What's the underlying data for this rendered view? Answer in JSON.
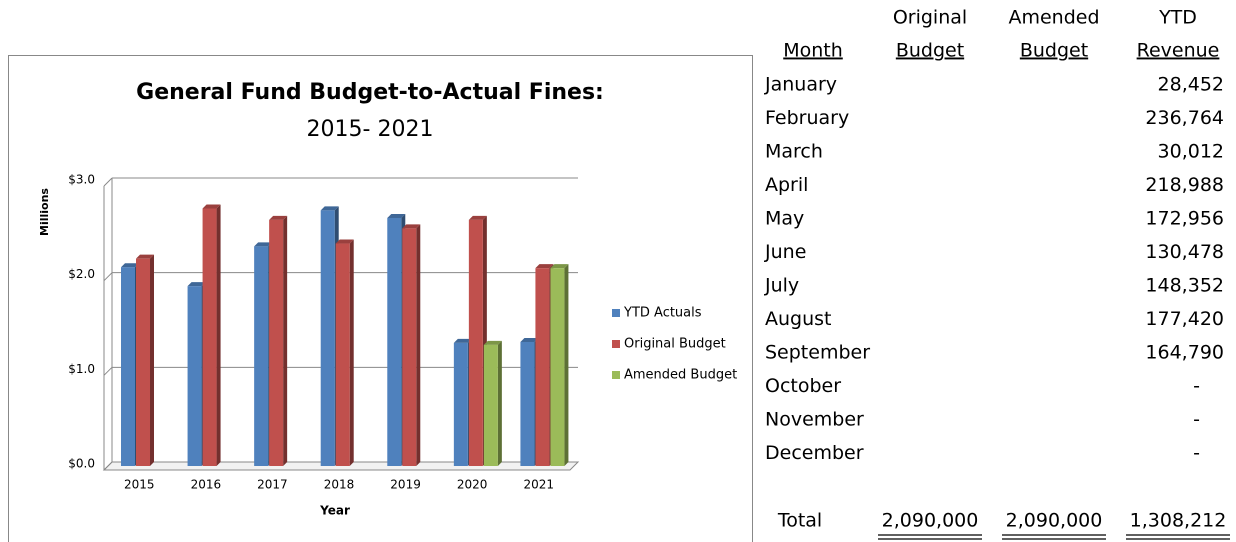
{
  "chart_data": {
    "type": "bar",
    "title": "General Fund Budget-to-Actual Fines:",
    "subtitle": "2015- 2021",
    "x_label": "Year",
    "y_label": "Millions",
    "categories": [
      "2015",
      "2016",
      "2017",
      "2018",
      "2019",
      "2020",
      "2021"
    ],
    "series": [
      {
        "name": "YTD Actuals",
        "color": "#4f81bd",
        "values": [
          2.1,
          1.9,
          2.32,
          2.7,
          2.62,
          1.3,
          1.31
        ]
      },
      {
        "name": "Original Budget",
        "color": "#c0504d",
        "values": [
          2.19,
          2.72,
          2.6,
          2.35,
          2.51,
          2.6,
          2.09
        ]
      },
      {
        "name": "Amended Budget",
        "color": "#9bbb59",
        "values": [
          null,
          null,
          null,
          null,
          null,
          1.28,
          2.09
        ]
      }
    ],
    "ylim": [
      0,
      3
    ],
    "yticks": [
      {
        "value": 0,
        "label": "$0.0"
      },
      {
        "value": 1,
        "label": "$1.0"
      },
      {
        "value": 2,
        "label": "$2.0"
      },
      {
        "value": 3,
        "label": "$3.0"
      }
    ],
    "grid": true,
    "legend": "right"
  },
  "table": {
    "columns": [
      {
        "label": "Month"
      },
      {
        "top": "Original",
        "label": "Budget"
      },
      {
        "top": "Amended",
        "label": "Budget"
      },
      {
        "top": "YTD",
        "label": "Revenue"
      }
    ],
    "rows": [
      [
        "January",
        "28,452"
      ],
      [
        "February",
        "236,764"
      ],
      [
        "March",
        "30,012"
      ],
      [
        "April",
        "218,988"
      ],
      [
        "May",
        "172,956"
      ],
      [
        "June",
        "130,478"
      ],
      [
        "July",
        "148,352"
      ],
      [
        "August",
        "177,420"
      ],
      [
        "September",
        "164,790"
      ],
      [
        "October",
        "-"
      ],
      [
        "November",
        "-"
      ],
      [
        "December",
        "-"
      ]
    ],
    "total": [
      "Total",
      "2,090,000",
      "2,090,000",
      "1,308,212"
    ]
  }
}
